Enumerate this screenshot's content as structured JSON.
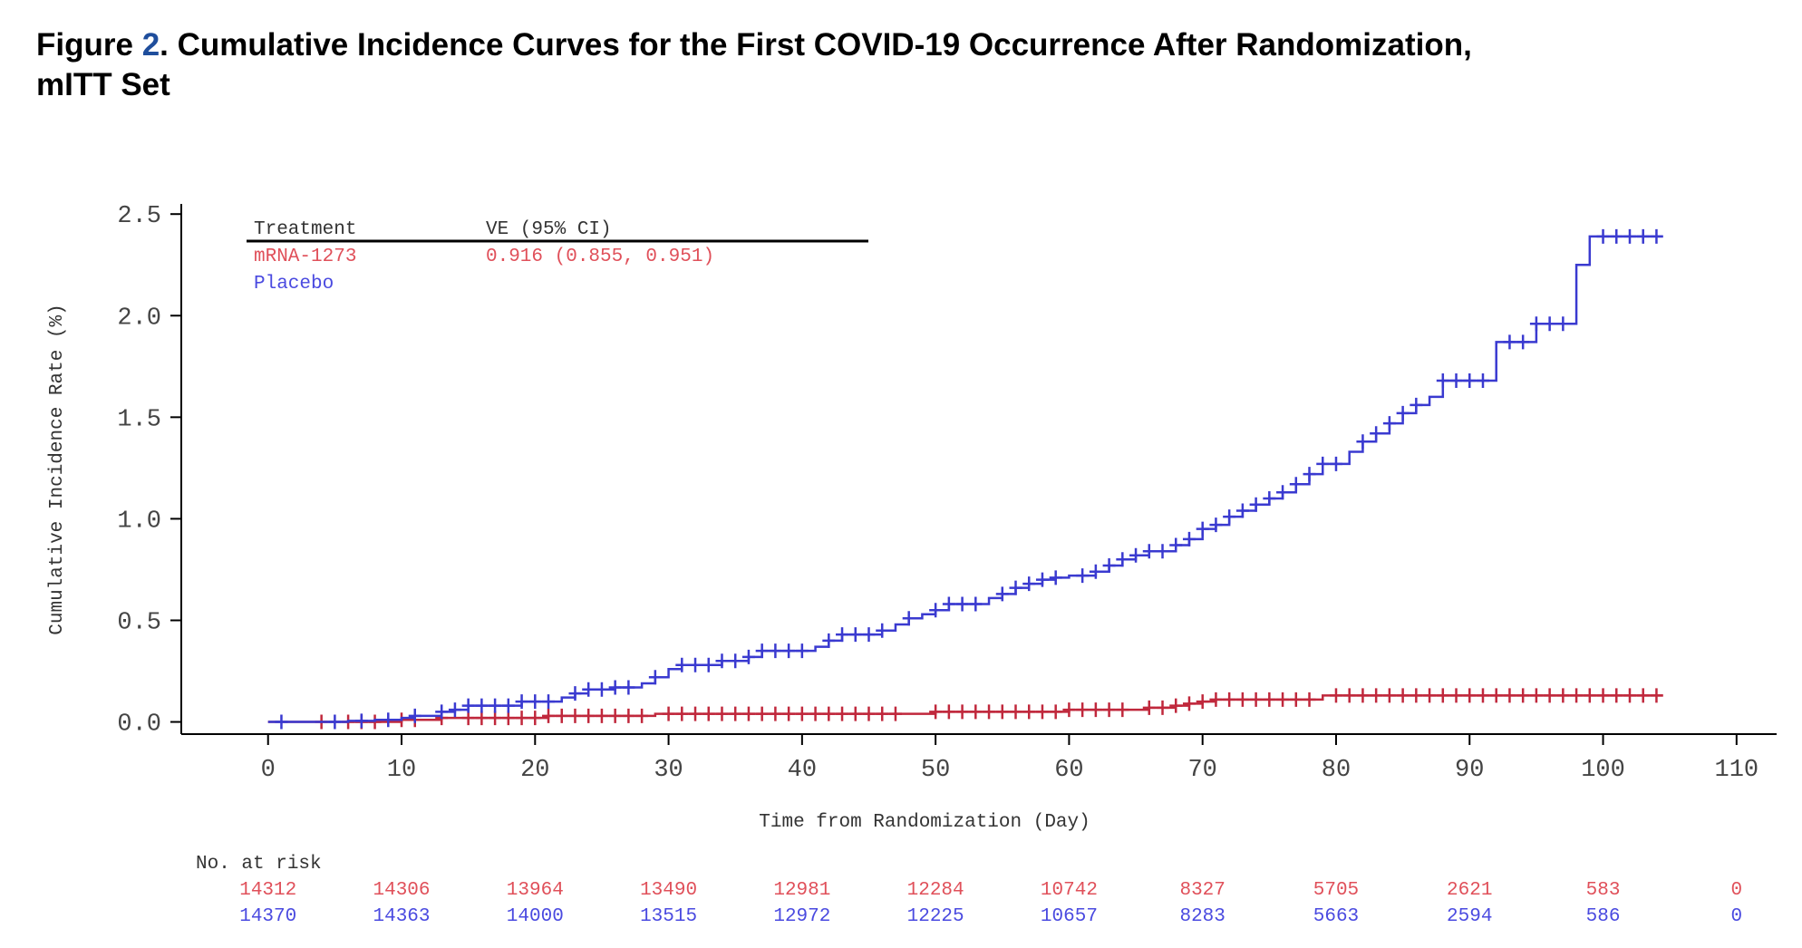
{
  "title": {
    "prefix": "Figure ",
    "number": "2",
    "line1_rest": ". Cumulative Incidence Curves for the First COVID-19 Occurrence After Randomization,",
    "line2": "mITT Set"
  },
  "chart_data": {
    "type": "line",
    "step": true,
    "xlabel": "Time from Randomization (Day)",
    "ylabel": "Cumulative Incidence Rate (%)",
    "xlim": [
      -6.5,
      113
    ],
    "ylim": [
      -0.06,
      2.55
    ],
    "x_ticks": [
      0,
      10,
      20,
      30,
      40,
      50,
      60,
      70,
      80,
      90,
      100,
      110
    ],
    "y_ticks": [
      0.0,
      0.5,
      1.0,
      1.5,
      2.0,
      2.5
    ],
    "x_tick_labels": [
      "0",
      "10",
      "20",
      "30",
      "40",
      "50",
      "60",
      "70",
      "80",
      "90",
      "100",
      "110"
    ],
    "y_tick_labels": [
      "0.0",
      "0.5",
      "1.0",
      "1.5",
      "2.0",
      "2.5"
    ],
    "legend": {
      "position": "top-left",
      "col1_header": "Treatment",
      "col2_header": "VE (95% CI)",
      "entries": [
        {
          "name": "mRNA-1273",
          "ve": "0.916 (0.855, 0.951)"
        },
        {
          "name": "Placebo",
          "ve": ""
        }
      ]
    },
    "series": [
      {
        "name": "mRNA-1273",
        "color": "#c0283c",
        "x": [
          0,
          10,
          13,
          21,
          29,
          35,
          50,
          60,
          66,
          68,
          69,
          70,
          71,
          72,
          79,
          104.5
        ],
        "y": [
          0,
          0.01,
          0.02,
          0.03,
          0.04,
          0.04,
          0.05,
          0.06,
          0.07,
          0.08,
          0.09,
          0.1,
          0.11,
          0.11,
          0.13,
          0.13
        ],
        "censor_x": [
          4,
          6,
          7,
          8,
          10,
          11,
          13,
          15,
          16,
          17,
          18,
          19,
          20,
          21,
          22,
          23,
          24,
          25,
          26,
          27,
          28,
          30,
          31,
          32,
          33,
          34,
          35,
          36,
          37,
          38,
          39,
          40,
          41,
          42,
          43,
          44,
          45,
          46,
          47,
          50,
          51,
          52,
          53,
          54,
          55,
          56,
          57,
          58,
          59,
          60,
          61,
          62,
          63,
          64,
          66,
          67,
          68,
          69,
          70,
          71,
          72,
          73,
          74,
          75,
          76,
          77,
          78,
          80,
          81,
          82,
          83,
          84,
          85,
          86,
          87,
          88,
          89,
          90,
          91,
          92,
          93,
          94,
          95,
          96,
          97,
          98,
          99,
          100,
          101,
          102,
          103,
          104
        ]
      },
      {
        "name": "Placebo",
        "color": "#3a3ad0",
        "x": [
          0,
          6,
          8,
          10,
          11,
          13,
          14,
          15,
          19,
          22,
          23,
          24,
          26,
          28,
          29,
          30,
          31,
          34,
          36,
          37,
          41,
          42,
          43,
          46,
          47,
          48,
          49,
          50,
          51,
          54,
          55,
          56,
          57,
          58,
          59,
          60,
          62,
          63,
          64,
          65,
          66,
          68,
          69,
          70,
          71,
          72,
          73,
          74,
          75,
          76,
          77,
          78,
          79,
          81,
          82,
          83,
          84,
          85,
          86,
          87,
          88,
          92,
          95,
          98,
          99,
          104.5
        ],
        "y": [
          0,
          0.005,
          0.01,
          0.02,
          0.03,
          0.05,
          0.06,
          0.08,
          0.1,
          0.12,
          0.14,
          0.16,
          0.17,
          0.19,
          0.22,
          0.26,
          0.28,
          0.3,
          0.32,
          0.35,
          0.37,
          0.4,
          0.43,
          0.45,
          0.48,
          0.51,
          0.53,
          0.55,
          0.58,
          0.61,
          0.63,
          0.66,
          0.68,
          0.7,
          0.71,
          0.72,
          0.74,
          0.77,
          0.8,
          0.82,
          0.84,
          0.87,
          0.9,
          0.95,
          0.97,
          1.01,
          1.04,
          1.07,
          1.1,
          1.13,
          1.17,
          1.22,
          1.27,
          1.33,
          1.38,
          1.42,
          1.47,
          1.52,
          1.56,
          1.6,
          1.68,
          1.87,
          1.96,
          2.25,
          2.39,
          2.39
        ],
        "censor_x": [
          1,
          5,
          7,
          9,
          11,
          13,
          14,
          15,
          16,
          17,
          18,
          19,
          20,
          21,
          23,
          24,
          25,
          26,
          27,
          29,
          31,
          32,
          33,
          34,
          35,
          36,
          37,
          38,
          39,
          40,
          42,
          43,
          44,
          45,
          46,
          48,
          50,
          51,
          52,
          53,
          55,
          56,
          57,
          58,
          59,
          61,
          62,
          63,
          64,
          65,
          66,
          67,
          68,
          69,
          70,
          71,
          72,
          73,
          74,
          75,
          76,
          77,
          78,
          79,
          80,
          82,
          83,
          84,
          85,
          86,
          88,
          89,
          90,
          91,
          93,
          94,
          95,
          96,
          97,
          100,
          101,
          102,
          103,
          104
        ]
      }
    ],
    "at_risk": {
      "label": "No. at risk",
      "days": [
        0,
        10,
        20,
        30,
        40,
        50,
        60,
        70,
        80,
        90,
        100,
        110
      ],
      "rows": [
        {
          "name": "mRNA-1273",
          "counts": [
            "14312",
            "14306",
            "13964",
            "13490",
            "12981",
            "12284",
            "10742",
            "8327",
            "5705",
            "2621",
            "583",
            "0"
          ]
        },
        {
          "name": "Placebo",
          "counts": [
            "14370",
            "14363",
            "14000",
            "13515",
            "12972",
            "12225",
            "10657",
            "8283",
            "5663",
            "2594",
            "586",
            "0"
          ]
        }
      ]
    }
  }
}
